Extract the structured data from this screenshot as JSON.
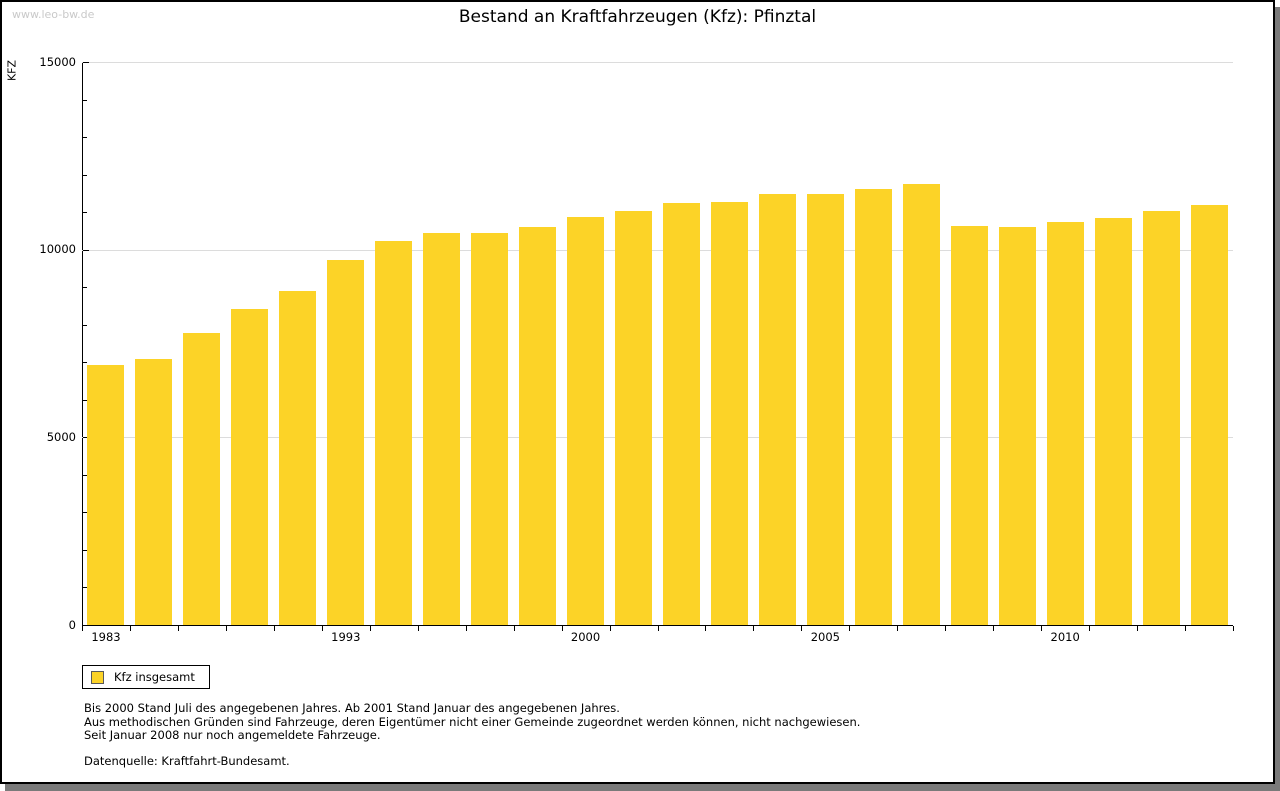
{
  "watermark": "www.leo-bw.de",
  "header": {
    "title": "Bestand an Kraftfahrzeugen (Kfz): Pfinztal"
  },
  "legend": {
    "label": "Kfz insgesamt"
  },
  "footnotes": {
    "line1": "Bis 2000 Stand Juli des angegebenen Jahres. Ab 2001 Stand Januar des angegebenen Jahres.",
    "line2": "Aus methodischen Gründen sind Fahrzeuge, deren Eigentümer nicht einer Gemeinde zugeordnet werden können, nicht nachgewiesen.",
    "line3": "Seit Januar 2008 nur noch angemeldete Fahrzeuge.",
    "source": "Datenquelle: Kraftfahrt-Bundesamt."
  },
  "colors": {
    "bar": "#fcd327",
    "grid": "#dcdcdc",
    "axis": "#000000",
    "frame_border": "#000000",
    "frame_shadow": "#7a7a7a",
    "watermark": "#c9c9c9",
    "swatch_border": "#5a5a5a"
  },
  "chart_data": {
    "type": "bar",
    "title": "Bestand an Kraftfahrzeugen (Kfz): Pfinztal",
    "xlabel": "",
    "ylabel": "KFZ",
    "ylim": [
      0,
      15000
    ],
    "y_major_ticks": [
      0,
      5000,
      10000,
      15000
    ],
    "y_minor_step": 1000,
    "grid": true,
    "legend_position": "bottom-left",
    "x_visible_tick_labels": [
      "1983",
      "1993",
      "2000",
      "2005",
      "2010"
    ],
    "categories": [
      "1983",
      "",
      "",
      "",
      "",
      "1993",
      "",
      "",
      "",
      "",
      "2000",
      "",
      "",
      "",
      "",
      "2005",
      "",
      "",
      "",
      "",
      "2010",
      "",
      "",
      ""
    ],
    "series": [
      {
        "name": "Kfz insgesamt",
        "color": "#fcd327",
        "values": [
          6925,
          7100,
          7790,
          8410,
          8900,
          9725,
          10230,
          10455,
          10445,
          10595,
          10860,
          11030,
          11235,
          11260,
          11475,
          11495,
          11620,
          11760,
          10640,
          10605,
          10740,
          10845,
          11030,
          11190
        ]
      }
    ]
  }
}
